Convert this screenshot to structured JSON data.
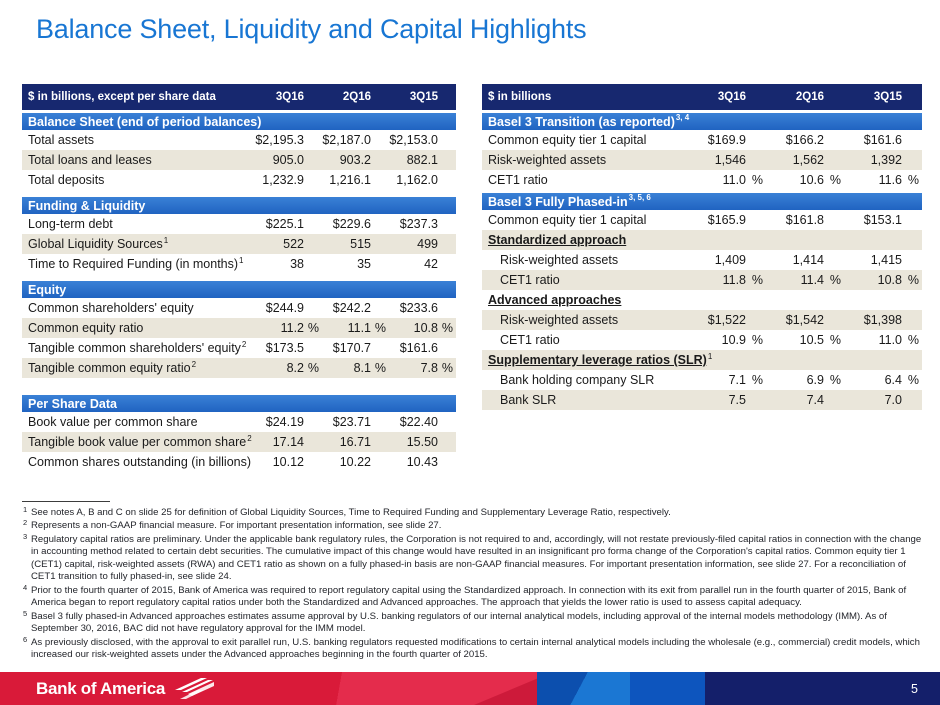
{
  "slide": {
    "title": "Balance Sheet, Liquidity and Capital Highlights",
    "page_number": "5"
  },
  "logo": {
    "text": "Bank of America",
    "icon": "flagscape-icon"
  },
  "colors": {
    "title_blue": "#1876d3",
    "header_navy": "#17286f",
    "section_band_blue": "#2a70c8",
    "row_shade": "#eae6da",
    "footer_red": "#dc1c3a",
    "footer_blue": "#0d55be",
    "footer_navy": "#141f6a"
  },
  "left_table": {
    "unit_label": "$ in billions, except per share data",
    "columns": [
      "3Q16",
      "2Q16",
      "3Q15"
    ],
    "sections": [
      {
        "title": "Balance Sheet (end of period balances)",
        "sup": "",
        "rows": [
          {
            "label": "Total assets",
            "sup": "",
            "values": [
              "$2,195.3",
              "$2,187.0",
              "$2,153.0"
            ],
            "pct": false,
            "shaded": false
          },
          {
            "label": "Total loans and leases",
            "sup": "",
            "values": [
              "905.0",
              "903.2",
              "882.1"
            ],
            "pct": false,
            "shaded": true
          },
          {
            "label": "Total deposits",
            "sup": "",
            "values": [
              "1,232.9",
              "1,216.1",
              "1,162.0"
            ],
            "pct": false,
            "shaded": false
          }
        ]
      },
      {
        "title": "Funding & Liquidity",
        "sup": "",
        "rows": [
          {
            "label": "Long-term debt",
            "sup": "",
            "values": [
              "$225.1",
              "$229.6",
              "$237.3"
            ],
            "pct": false,
            "shaded": false
          },
          {
            "label": "Global Liquidity Sources",
            "sup": "1",
            "values": [
              "522",
              "515",
              "499"
            ],
            "pct": false,
            "shaded": true
          },
          {
            "label": "Time to Required Funding (in months)",
            "sup": "1",
            "values": [
              "38",
              "35",
              "42"
            ],
            "pct": false,
            "shaded": false
          }
        ]
      },
      {
        "title": "Equity",
        "sup": "",
        "rows": [
          {
            "label": "Common shareholders' equity",
            "sup": "",
            "values": [
              "$244.9",
              "$242.2",
              "$233.6"
            ],
            "pct": false,
            "shaded": false
          },
          {
            "label": "Common equity ratio",
            "sup": "",
            "values": [
              "11.2",
              "11.1",
              "10.8"
            ],
            "pct": true,
            "shaded": true
          },
          {
            "label": "Tangible common shareholders' equity",
            "sup": "2",
            "values": [
              "$173.5",
              "$170.7",
              "$161.6"
            ],
            "pct": false,
            "shaded": false
          },
          {
            "label": "Tangible common equity ratio",
            "sup": "2",
            "values": [
              "8.2",
              "8.1",
              "7.8"
            ],
            "pct": true,
            "shaded": true
          }
        ]
      },
      {
        "title": "Per Share Data",
        "sup": "",
        "rows": [
          {
            "label": "Book value per common share",
            "sup": "",
            "values": [
              "$24.19",
              "$23.71",
              "$22.40"
            ],
            "pct": false,
            "shaded": false
          },
          {
            "label": "Tangible book value per common share",
            "sup": "2",
            "values": [
              "17.14",
              "16.71",
              "15.50"
            ],
            "pct": false,
            "shaded": true
          },
          {
            "label": "Common shares outstanding (in billions)",
            "sup": "",
            "values": [
              "10.12",
              "10.22",
              "10.43"
            ],
            "pct": false,
            "shaded": false
          }
        ]
      }
    ]
  },
  "right_table": {
    "unit_label": "$ in billions",
    "columns": [
      "3Q16",
      "2Q16",
      "3Q15"
    ],
    "sections": [
      {
        "title": "Basel 3 Transition (as reported)",
        "sup": "3, 4",
        "rows": [
          {
            "label": "Common equity tier 1 capital",
            "sup": "",
            "values": [
              "$169.9",
              "$166.2",
              "$161.6"
            ],
            "pct": false,
            "shaded": false
          },
          {
            "label": "Risk-weighted assets",
            "sup": "",
            "values": [
              "1,546",
              "1,562",
              "1,392"
            ],
            "pct": false,
            "shaded": true
          },
          {
            "label": "CET1 ratio",
            "sup": "",
            "values": [
              "11.0",
              "10.6",
              "11.6"
            ],
            "pct": true,
            "shaded": false
          }
        ]
      },
      {
        "title": "Basel 3 Fully Phased-in",
        "sup": "3, 5, 6",
        "rows": [
          {
            "label": "Common equity tier 1 capital",
            "sup": "",
            "values": [
              "$165.9",
              "$161.8",
              "$153.1"
            ],
            "pct": false,
            "shaded": false
          },
          {
            "label": "Standardized approach",
            "sup": "",
            "type": "subhead",
            "shaded": true
          },
          {
            "label": "Risk-weighted assets",
            "sup": "",
            "indent": true,
            "values": [
              "1,409",
              "1,414",
              "1,415"
            ],
            "pct": false,
            "shaded": false
          },
          {
            "label": "CET1 ratio",
            "sup": "",
            "indent": true,
            "values": [
              "11.8",
              "11.4",
              "10.8"
            ],
            "pct": true,
            "shaded": true
          },
          {
            "label": "Advanced approaches",
            "sup": "",
            "type": "subhead",
            "shaded": false
          },
          {
            "label": "Risk-weighted assets",
            "sup": "",
            "indent": true,
            "values": [
              "$1,522",
              "$1,542",
              "$1,398"
            ],
            "pct": false,
            "shaded": true
          },
          {
            "label": "CET1 ratio",
            "sup": "",
            "indent": true,
            "values": [
              "10.9",
              "10.5",
              "11.0"
            ],
            "pct": true,
            "shaded": false
          },
          {
            "label": "Supplementary leverage ratios (SLR)",
            "sup": "1",
            "type": "subhead",
            "shaded": true
          },
          {
            "label": "Bank holding company SLR",
            "sup": "",
            "indent": true,
            "values": [
              "7.1",
              "6.9",
              "6.4"
            ],
            "pct": true,
            "shaded": false
          },
          {
            "label": "Bank SLR",
            "sup": "",
            "indent": true,
            "values": [
              "7.5",
              "7.4",
              "7.0"
            ],
            "pct": false,
            "shaded": true
          }
        ]
      }
    ]
  },
  "footnotes": [
    {
      "num": "1",
      "text": "See notes A, B and C on slide 25 for definition of Global Liquidity Sources, Time to Required Funding and Supplementary Leverage Ratio, respectively."
    },
    {
      "num": "2",
      "text": "Represents a non-GAAP financial measure. For important presentation information, see slide 27."
    },
    {
      "num": "3",
      "text": "Regulatory capital ratios are preliminary. Under the applicable bank regulatory rules, the Corporation is not required to and, accordingly, will not restate previously-filed capital ratios in connection with the change in accounting method related to certain debt securities. The cumulative impact of this change would have resulted in an insignificant pro forma change of the Corporation's capital ratios. Common equity tier 1 (CET1) capital, risk-weighted assets (RWA) and CET1 ratio as shown on a fully phased-in basis are non-GAAP financial measures. For important presentation information, see slide 27. For a reconciliation of CET1 transition to fully phased-in, see slide 24."
    },
    {
      "num": "4",
      "text": "Prior to the fourth quarter of 2015, Bank of America was required to report regulatory capital using the Standardized approach. In connection with its exit from parallel run in the fourth quarter of 2015, Bank of America began to report regulatory capital ratios under both the Standardized and Advanced approaches. The approach that yields the lower ratio is used to assess capital adequacy."
    },
    {
      "num": "5",
      "text": "Basel 3 fully phased-in Advanced approaches estimates assume approval by U.S. banking regulators of our internal analytical models, including approval of the internal models methodology (IMM). As of September 30, 2016, BAC did not have regulatory approval for the IMM model."
    },
    {
      "num": "6",
      "text": "As previously disclosed, with the approval to exit parallel run, U.S. banking regulators requested modifications to certain internal analytical models including the wholesale (e.g., commercial) credit models, which increased our risk-weighted assets under the Advanced approaches beginning in the fourth quarter of 2015."
    }
  ]
}
